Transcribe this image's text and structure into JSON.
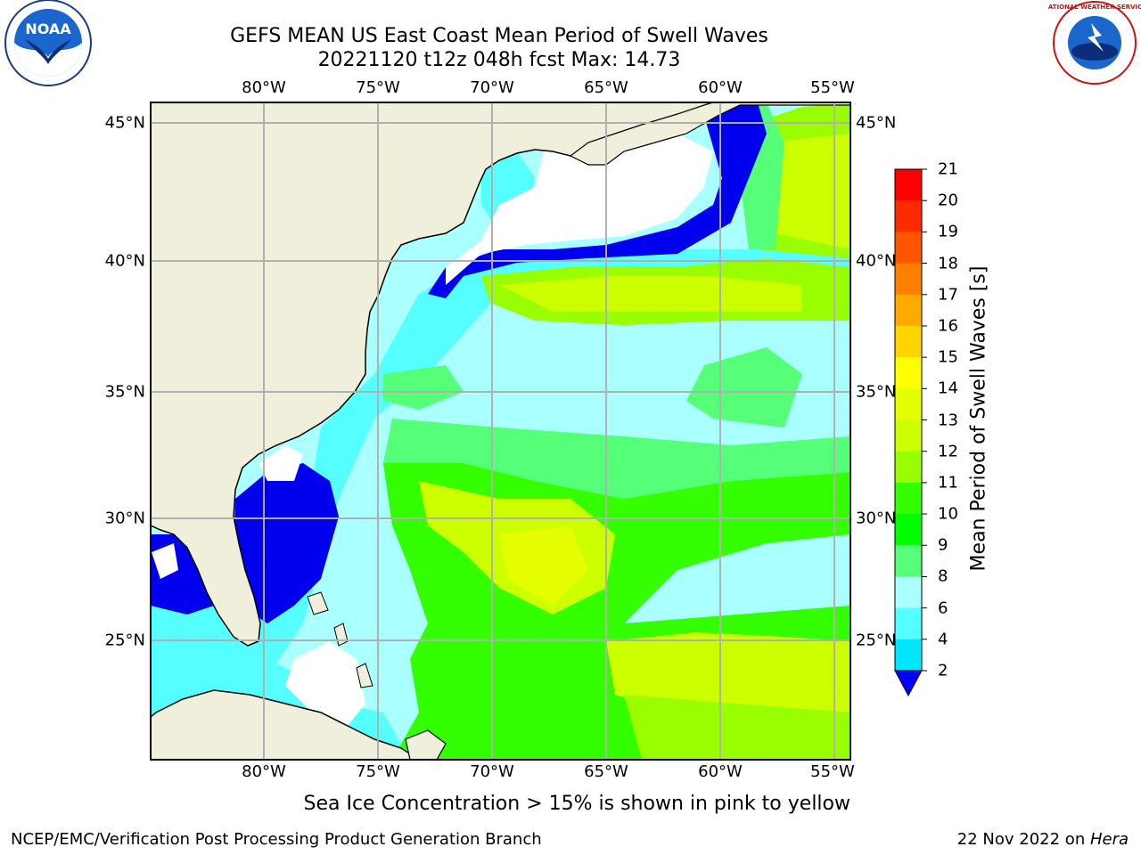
{
  "title_line1": "GEFS MEAN US East Coast Mean Period of Swell Waves",
  "title_line2": "20221120 t12z 048h fcst   Max: 14.73",
  "lon_labels": [
    "80°W",
    "75°W",
    "70°W",
    "65°W",
    "60°W",
    "55°W"
  ],
  "lat_labels": [
    "45°N",
    "40°N",
    "35°N",
    "30°N",
    "25°N"
  ],
  "colorbar": {
    "label": "Mean Period of Swell Waves [s]",
    "ticks": [
      "21",
      "20",
      "19",
      "18",
      "17",
      "16",
      "15",
      "14",
      "13",
      "12",
      "11",
      "10",
      "9",
      "8",
      "6",
      "4",
      "2"
    ],
    "colors": [
      "#ff0000",
      "#ff2a00",
      "#ff5500",
      "#ff8000",
      "#ffaa00",
      "#ffd400",
      "#ffff00",
      "#e6ff00",
      "#ccff00",
      "#99ff00",
      "#33ff00",
      "#00ff00",
      "#55ff77",
      "#aaffff",
      "#55ffff",
      "#00e6ff",
      "#0077ff"
    ],
    "extend_color": "#0000ff"
  },
  "note": "Sea Ice Concentration > 15% is shown in pink to yellow",
  "footer_left": "NCEP/EMC/Verification Post Processing Product Generation Branch",
  "footer_right_date": "22 Nov 2022 on ",
  "footer_right_host": "Hera",
  "logos": {
    "noaa_text": "NOAA",
    "nws_text": "NATIONAL WEATHER SERVICE"
  },
  "colors": {
    "land": "#efefdc",
    "grid": "#b0b0b0",
    "dark_blue": "#0000ee",
    "light_cyan": "#aaffff",
    "green": "#33ff00",
    "yellow_green": "#ccff00"
  }
}
